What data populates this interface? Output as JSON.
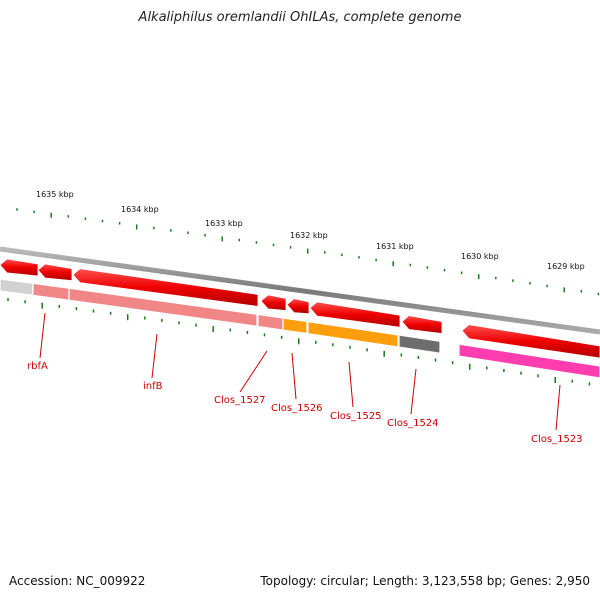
{
  "title": "Alkaliphilus oremlandii OhILAs, complete genome",
  "footer": {
    "accession": "Accession: NC_009922",
    "summary": "Topology: circular; Length: 3,123,558 bp; Genes: 2,950"
  },
  "ruler": [
    {
      "label": "1635 kbp"
    },
    {
      "label": "1634 kbp"
    },
    {
      "label": "1633 kbp"
    },
    {
      "label": "1632 kbp"
    },
    {
      "label": "1631 kbp"
    },
    {
      "label": "1630 kbp"
    },
    {
      "label": "1629 kbp"
    }
  ],
  "genes": [
    {
      "name": "rbfA",
      "color": "#e8e8e8"
    },
    {
      "name": "infB",
      "color": "#f08080"
    },
    {
      "name": "Clos_1527",
      "color": "#f08080"
    },
    {
      "name": "Clos_1526",
      "color": "#ff9900"
    },
    {
      "name": "Clos_1525",
      "color": "#ff9900"
    },
    {
      "name": "Clos_1524",
      "color": "#666666"
    },
    {
      "name": "Clos_1523",
      "color": "#ff33aa"
    }
  ],
  "colors": {
    "cds": "#ee0000",
    "backbone": "#888888",
    "ticks": "#1a7a1a",
    "label": "#cc0000"
  }
}
